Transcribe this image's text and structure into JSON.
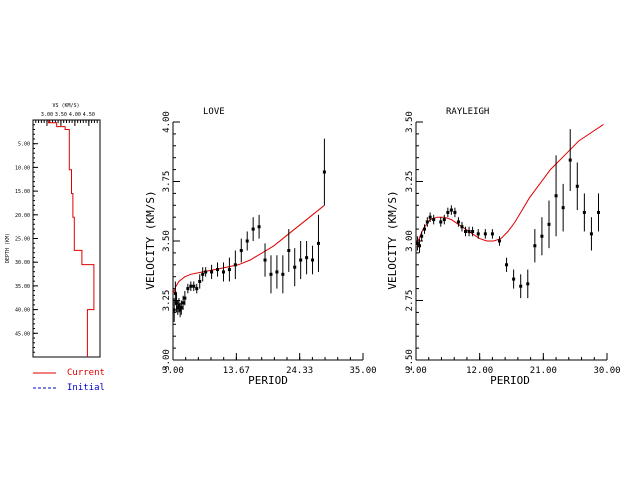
{
  "chart_data": [
    {
      "type": "line",
      "panel": "model",
      "xlabel": "VS (KM/S)",
      "ylabel": "DEPTH (KM)",
      "xticks": [
        "3.00",
        "3.50",
        "4.00",
        "4.50"
      ],
      "xlim": [
        2.5,
        4.9
      ],
      "yticks": [
        "5.00",
        "10.00",
        "15.00",
        "20.00",
        "25.00",
        "30.00",
        "35.00",
        "40.00",
        "45.00"
      ],
      "ylim": [
        0,
        50
      ],
      "series": [
        {
          "name": "Current",
          "color": "#e00000",
          "depth": [
            0,
            0.6,
            0.6,
            1.4,
            1.4,
            2.0,
            2.0,
            10.5,
            10.5,
            15.5,
            15.5,
            20.5,
            20.5,
            27.5,
            27.5,
            30.5,
            30.5,
            40.0,
            40.0,
            50.0
          ],
          "vs": [
            3.05,
            3.05,
            3.35,
            3.35,
            3.65,
            3.65,
            3.8,
            3.8,
            3.88,
            3.88,
            3.93,
            3.93,
            3.98,
            3.98,
            4.25,
            4.25,
            4.68,
            4.68,
            4.45,
            4.45
          ]
        }
      ]
    },
    {
      "type": "scatter",
      "panel": "love",
      "title": "LOVE",
      "xlabel": "PERIOD",
      "ylabel": "VELOCITY (KM/S)",
      "xlim": [
        3.0,
        35.0
      ],
      "ylim": [
        3.0,
        4.0
      ],
      "xticks": [
        "3.00",
        "13.67",
        "24.33",
        "35.00"
      ],
      "yticks": [
        "3.00",
        "3.25",
        "3.50",
        "3.75",
        "4.00"
      ],
      "observed": [
        {
          "x": 3.2,
          "y": 3.21,
          "err": 0.05
        },
        {
          "x": 3.4,
          "y": 3.28,
          "err": 0.05
        },
        {
          "x": 3.6,
          "y": 3.24,
          "err": 0.04
        },
        {
          "x": 3.8,
          "y": 3.22,
          "err": 0.03
        },
        {
          "x": 4.0,
          "y": 3.23,
          "err": 0.03
        },
        {
          "x": 4.2,
          "y": 3.21,
          "err": 0.03
        },
        {
          "x": 4.4,
          "y": 3.22,
          "err": 0.03
        },
        {
          "x": 4.7,
          "y": 3.24,
          "err": 0.03
        },
        {
          "x": 5.0,
          "y": 3.26,
          "err": 0.03
        },
        {
          "x": 5.5,
          "y": 3.3,
          "err": 0.02
        },
        {
          "x": 6.0,
          "y": 3.31,
          "err": 0.02
        },
        {
          "x": 6.5,
          "y": 3.31,
          "err": 0.02
        },
        {
          "x": 7.0,
          "y": 3.3,
          "err": 0.02
        },
        {
          "x": 7.5,
          "y": 3.33,
          "err": 0.03
        },
        {
          "x": 8.0,
          "y": 3.36,
          "err": 0.03
        },
        {
          "x": 8.5,
          "y": 3.37,
          "err": 0.02
        },
        {
          "x": 9.5,
          "y": 3.37,
          "err": 0.03
        },
        {
          "x": 10.5,
          "y": 3.38,
          "err": 0.03
        },
        {
          "x": 11.5,
          "y": 3.37,
          "err": 0.04
        },
        {
          "x": 12.5,
          "y": 3.38,
          "err": 0.05
        },
        {
          "x": 13.5,
          "y": 3.4,
          "err": 0.06
        },
        {
          "x": 14.5,
          "y": 3.46,
          "err": 0.05
        },
        {
          "x": 15.5,
          "y": 3.5,
          "err": 0.04
        },
        {
          "x": 16.5,
          "y": 3.55,
          "err": 0.05
        },
        {
          "x": 17.5,
          "y": 3.56,
          "err": 0.05
        },
        {
          "x": 18.5,
          "y": 3.42,
          "err": 0.07
        },
        {
          "x": 19.5,
          "y": 3.36,
          "err": 0.08
        },
        {
          "x": 20.5,
          "y": 3.37,
          "err": 0.07
        },
        {
          "x": 21.5,
          "y": 3.36,
          "err": 0.08
        },
        {
          "x": 22.5,
          "y": 3.46,
          "err": 0.09
        },
        {
          "x": 23.5,
          "y": 3.39,
          "err": 0.08
        },
        {
          "x": 24.5,
          "y": 3.42,
          "err": 0.08
        },
        {
          "x": 25.5,
          "y": 3.43,
          "err": 0.07
        },
        {
          "x": 26.5,
          "y": 3.42,
          "err": 0.06
        },
        {
          "x": 27.5,
          "y": 3.49,
          "err": 0.12
        },
        {
          "x": 28.5,
          "y": 3.79,
          "err": 0.14
        }
      ],
      "predicted": {
        "x": [
          3.0,
          3.5,
          4.0,
          5.0,
          6.0,
          8.0,
          10.0,
          12.0,
          14.0,
          16.0,
          18.0,
          20.0,
          22.0,
          24.0,
          26.0,
          28.5
        ],
        "y": [
          3.28,
          3.31,
          3.33,
          3.35,
          3.36,
          3.37,
          3.38,
          3.39,
          3.4,
          3.42,
          3.45,
          3.48,
          3.52,
          3.56,
          3.6,
          3.65
        ]
      }
    },
    {
      "type": "scatter",
      "panel": "rayleigh",
      "title": "RAYLEIGH",
      "xlabel": "PERIOD",
      "ylabel": "VELOCITY (KM/S)",
      "xlim": [
        3.0,
        30.0
      ],
      "ylim": [
        2.5,
        3.5
      ],
      "xticks": [
        "3.00",
        "12.00",
        "21.00",
        "30.00"
      ],
      "yticks": [
        "2.50",
        "2.75",
        "3.00",
        "3.25",
        "3.50"
      ],
      "observed": [
        {
          "x": 3.2,
          "y": 2.99,
          "err": 0.03
        },
        {
          "x": 3.5,
          "y": 2.98,
          "err": 0.03
        },
        {
          "x": 3.8,
          "y": 3.02,
          "err": 0.02
        },
        {
          "x": 4.2,
          "y": 3.05,
          "err": 0.02
        },
        {
          "x": 4.6,
          "y": 3.08,
          "err": 0.02
        },
        {
          "x": 5.0,
          "y": 3.1,
          "err": 0.02
        },
        {
          "x": 5.5,
          "y": 3.09,
          "err": 0.02
        },
        {
          "x": 6.5,
          "y": 3.08,
          "err": 0.02
        },
        {
          "x": 7.0,
          "y": 3.09,
          "err": 0.02
        },
        {
          "x": 7.5,
          "y": 3.12,
          "err": 0.02
        },
        {
          "x": 8.0,
          "y": 3.13,
          "err": 0.02
        },
        {
          "x": 8.5,
          "y": 3.12,
          "err": 0.02
        },
        {
          "x": 9.0,
          "y": 3.08,
          "err": 0.02
        },
        {
          "x": 9.5,
          "y": 3.06,
          "err": 0.02
        },
        {
          "x": 10.0,
          "y": 3.04,
          "err": 0.02
        },
        {
          "x": 10.5,
          "y": 3.04,
          "err": 0.02
        },
        {
          "x": 11.0,
          "y": 3.04,
          "err": 0.02
        },
        {
          "x": 11.8,
          "y": 3.03,
          "err": 0.02
        },
        {
          "x": 12.8,
          "y": 3.03,
          "err": 0.02
        },
        {
          "x": 13.8,
          "y": 3.03,
          "err": 0.02
        },
        {
          "x": 14.8,
          "y": 3.0,
          "err": 0.02
        },
        {
          "x": 15.8,
          "y": 2.9,
          "err": 0.03
        },
        {
          "x": 16.8,
          "y": 2.84,
          "err": 0.04
        },
        {
          "x": 17.8,
          "y": 2.81,
          "err": 0.05
        },
        {
          "x": 18.8,
          "y": 2.82,
          "err": 0.06
        },
        {
          "x": 19.8,
          "y": 2.98,
          "err": 0.07
        },
        {
          "x": 20.8,
          "y": 3.02,
          "err": 0.08
        },
        {
          "x": 21.8,
          "y": 3.07,
          "err": 0.1
        },
        {
          "x": 22.8,
          "y": 3.19,
          "err": 0.17
        },
        {
          "x": 23.8,
          "y": 3.14,
          "err": 0.1
        },
        {
          "x": 24.8,
          "y": 3.34,
          "err": 0.13
        },
        {
          "x": 25.8,
          "y": 3.23,
          "err": 0.1
        },
        {
          "x": 26.8,
          "y": 3.12,
          "err": 0.08
        },
        {
          "x": 27.8,
          "y": 3.03,
          "err": 0.07
        },
        {
          "x": 28.8,
          "y": 3.12,
          "err": 0.08
        }
      ],
      "predicted": {
        "x": [
          3.0,
          4.0,
          5.0,
          6.0,
          7.0,
          8.0,
          9.0,
          10.0,
          11.0,
          12.0,
          13.0,
          14.0,
          15.0,
          16.0,
          17.0,
          18.0,
          19.0,
          20.0,
          22.0,
          24.0,
          26.0,
          28.0,
          29.5
        ],
        "y": [
          2.98,
          3.05,
          3.09,
          3.1,
          3.1,
          3.09,
          3.07,
          3.05,
          3.03,
          3.01,
          3.0,
          3.0,
          3.01,
          3.04,
          3.08,
          3.13,
          3.18,
          3.22,
          3.3,
          3.36,
          3.42,
          3.46,
          3.49
        ]
      }
    }
  ],
  "legend": {
    "current": {
      "label": "Current",
      "color": "#e00000"
    },
    "initial": {
      "label": "Initial",
      "color": "#0000cc"
    }
  }
}
